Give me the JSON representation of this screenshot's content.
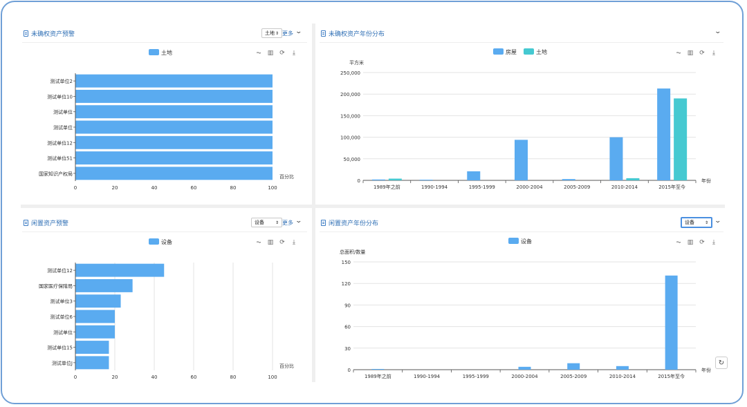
{
  "colors": {
    "series1": "#5aabf0",
    "series2": "#45c9d1",
    "title": "#2f6fb5"
  },
  "panels": {
    "p1": {
      "title": "未确权资产预警",
      "select_value": "土地",
      "more_label": "更多"
    },
    "p2": {
      "title": "未确权资产年份分布"
    },
    "p3": {
      "title": "闲置资产预警",
      "select_value": "设备",
      "more_label": "更多"
    },
    "p4": {
      "title": "闲置资产年份分布",
      "select_value": "设备"
    }
  },
  "toolbox_icons": [
    "line-chart-icon",
    "bar-chart-icon",
    "refresh-icon",
    "download-icon"
  ],
  "chart_data": [
    {
      "id": "c1",
      "type": "bar",
      "orientation": "horizontal",
      "categories": [
        "测试单位2",
        "测试单位10",
        "测试单位",
        "测试单位",
        "测试单位12",
        "测试单位51",
        "国家知识产权局"
      ],
      "series": [
        {
          "name": "土地",
          "values": [
            100,
            100,
            100,
            100,
            100,
            100,
            100
          ]
        }
      ],
      "xlim": [
        0,
        100
      ],
      "xticks": [
        0,
        20,
        40,
        60,
        80,
        100
      ],
      "xlabel": "百分比",
      "ylabel": "",
      "legend": "top-center",
      "grid": false
    },
    {
      "id": "c2",
      "type": "bar",
      "orientation": "vertical",
      "categories": [
        "1989年之前",
        "1990-1994",
        "1995-1999",
        "2000-2004",
        "2005-2009",
        "2010-2014",
        "2015年至今"
      ],
      "series": [
        {
          "name": "房屋",
          "values": [
            2000,
            1500,
            21000,
            94000,
            3000,
            100000,
            213000
          ]
        },
        {
          "name": "土地",
          "values": [
            4000,
            0,
            0,
            0,
            0,
            5000,
            190000
          ]
        }
      ],
      "ylim": [
        0,
        250000
      ],
      "yticks": [
        "0",
        "50,000",
        "100,000",
        "150,000",
        "200,000",
        "250,000"
      ],
      "ylabel": "平方米",
      "xlabel": "年份",
      "legend": "top-center",
      "grid": true
    },
    {
      "id": "c3",
      "type": "bar",
      "orientation": "horizontal",
      "categories": [
        "测试单位12",
        "国家医疗保障局",
        "测试单位3",
        "测试单位6",
        "测试单位",
        "测试单位15",
        "测试单位J"
      ],
      "series": [
        {
          "name": "设备",
          "values": [
            45,
            29,
            23,
            20,
            20,
            17,
            17
          ]
        }
      ],
      "xlim": [
        0,
        100
      ],
      "xticks": [
        0,
        20,
        40,
        60,
        80,
        100
      ],
      "xlabel": "百分比",
      "ylabel": "",
      "legend": "top-center",
      "grid": true
    },
    {
      "id": "c4",
      "type": "bar",
      "orientation": "vertical",
      "categories": [
        "1989年之前",
        "1990-1994",
        "1995-1999",
        "2000-2004",
        "2005-2009",
        "2010-2014",
        "2015年至今"
      ],
      "series": [
        {
          "name": "设备",
          "values": [
            1,
            0,
            0,
            4,
            9,
            5,
            131
          ]
        }
      ],
      "ylim": [
        0,
        150
      ],
      "yticks": [
        "0",
        "30",
        "60",
        "90",
        "120",
        "150"
      ],
      "ylabel": "总面积/数量",
      "xlabel": "年份",
      "legend": "top-center",
      "grid": true
    }
  ]
}
